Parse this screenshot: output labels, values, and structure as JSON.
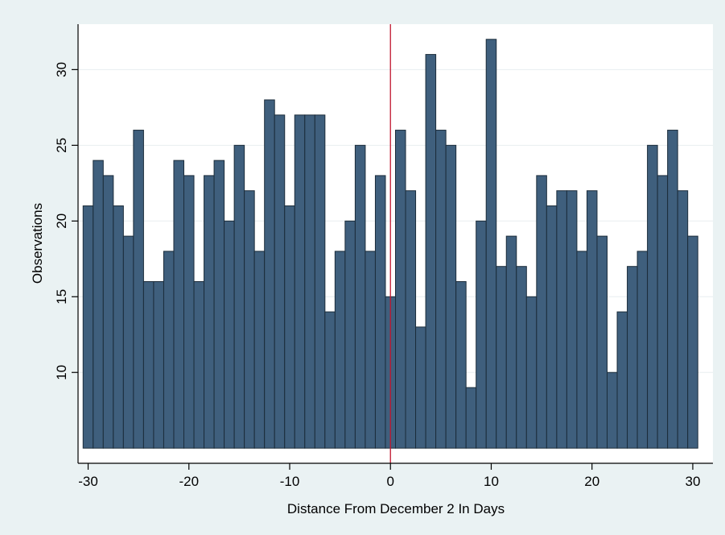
{
  "chart_data": {
    "type": "bar",
    "title": "",
    "xlabel": "Distance From December 2 In Days",
    "ylabel": "Observations",
    "x": [
      -30,
      -29,
      -28,
      -27,
      -26,
      -25,
      -24,
      -23,
      -22,
      -21,
      -20,
      -19,
      -18,
      -17,
      -16,
      -15,
      -14,
      -13,
      -12,
      -11,
      -10,
      -9,
      -8,
      -7,
      -6,
      -5,
      -4,
      -3,
      -2,
      -1,
      0,
      1,
      2,
      3,
      4,
      5,
      6,
      7,
      8,
      9,
      10,
      11,
      12,
      13,
      14,
      15,
      16,
      17,
      18,
      19,
      20,
      21,
      22,
      23,
      24,
      25,
      26,
      27,
      28,
      29,
      30
    ],
    "values": [
      21,
      24,
      23,
      21,
      19,
      26,
      16,
      16,
      18,
      24,
      23,
      16,
      23,
      24,
      20,
      25,
      22,
      18,
      28,
      27,
      21,
      27,
      27,
      27,
      14,
      18,
      20,
      25,
      18,
      23,
      15,
      26,
      22,
      13,
      31,
      26,
      25,
      16,
      9,
      20,
      32,
      17,
      19,
      17,
      15,
      23,
      21,
      22,
      22,
      18,
      22,
      19,
      10,
      14,
      17,
      18,
      25,
      23,
      26,
      22,
      19
    ],
    "xlim": [
      -31,
      32
    ],
    "ylim": [
      4,
      33
    ],
    "xticks": [
      "-30",
      "-20",
      "-10",
      "0",
      "10",
      "20",
      "30"
    ],
    "xtick_values": [
      -30,
      -20,
      -10,
      0,
      10,
      20,
      30
    ],
    "yticks": [
      "10",
      "15",
      "20",
      "25",
      "30"
    ],
    "ytick_values": [
      10,
      15,
      20,
      25,
      30
    ],
    "bar_base": 5,
    "reference_line": 0,
    "grid": true,
    "legend": "none",
    "colors": {
      "bar_fill": "#3f5f7d",
      "bar_edge": "#1b2c3a",
      "reference_line": "#c0162f",
      "grid": "#e8eef0",
      "plot_background": "#ffffff",
      "page_background": "#eaf2f3"
    }
  }
}
